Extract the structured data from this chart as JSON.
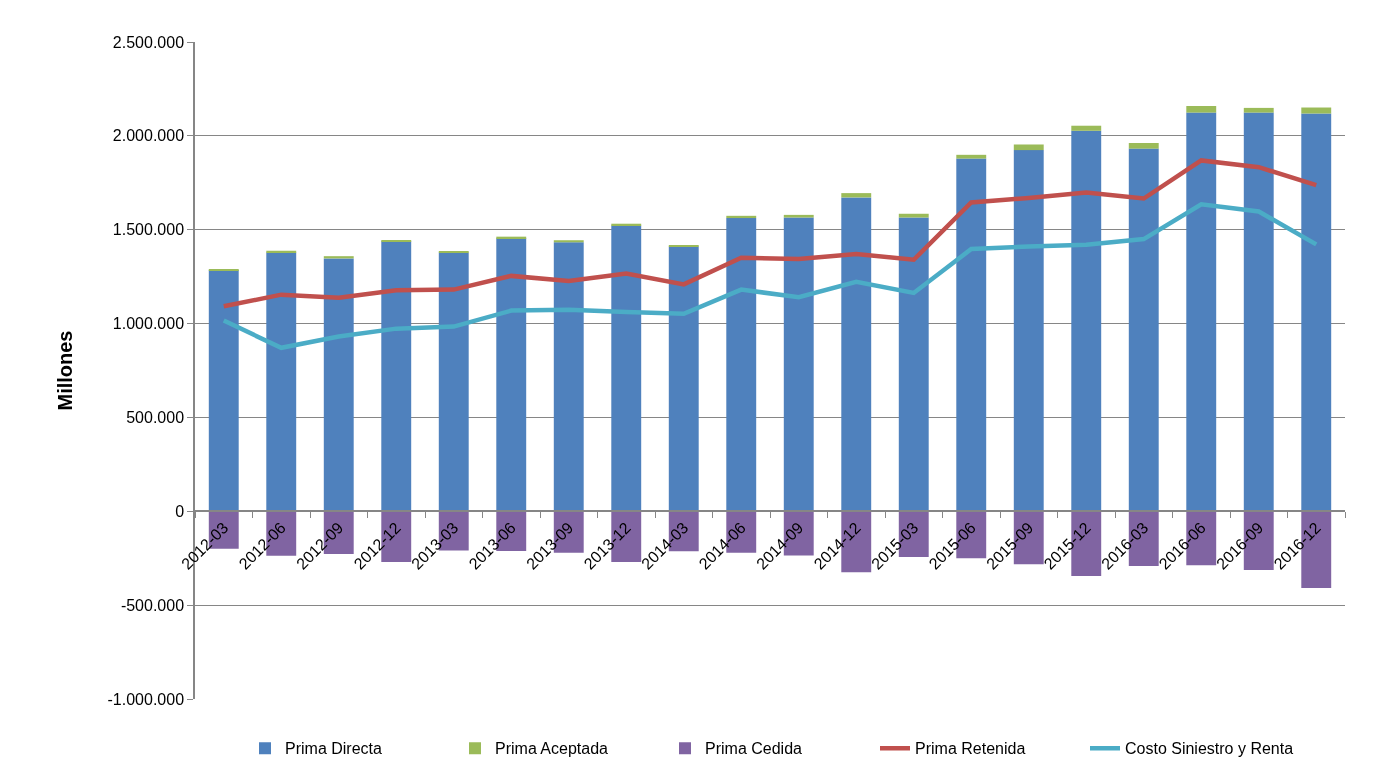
{
  "chart_data": {
    "type": "bar",
    "stacked": true,
    "ylabel": "Millones",
    "grid": "y",
    "legend": "bottom",
    "categories": [
      "2012-03",
      "2012-06",
      "2012-09",
      "2012-12",
      "2013-03",
      "2013-06",
      "2013-09",
      "2013-12",
      "2014-03",
      "2014-06",
      "2014-09",
      "2014-12",
      "2015-03",
      "2015-06",
      "2015-09",
      "2015-12",
      "2016-03",
      "2016-06",
      "2016-09",
      "2016-12"
    ],
    "ylim": [
      -1000000,
      2500000
    ],
    "yticks": [
      {
        "value": -1000000,
        "label": "-1.000.000"
      },
      {
        "value": -500000,
        "label": "-500.000"
      },
      0,
      {
        "value": 500000,
        "label": "500.000"
      },
      {
        "value": 1000000,
        "label": "1.000.000"
      },
      {
        "value": 1500000,
        "label": "1.500.000"
      },
      {
        "value": 2000000,
        "label": "2.000.000"
      },
      {
        "value": 2500000,
        "label": "2.500.000"
      }
    ],
    "series": [
      {
        "name": "Prima Directa",
        "color": "#4f81bd",
        "values": [
          1285000,
          1378000,
          1347000,
          1438000,
          1378000,
          1454000,
          1433000,
          1523000,
          1411000,
          1562000,
          1565000,
          1672000,
          1565000,
          1879000,
          1924000,
          2027000,
          1932000,
          2124000,
          2124000,
          2119000
        ]
      },
      {
        "name": "Prima Aceptada",
        "color": "#9bbb59",
        "values": [
          5000,
          10000,
          12000,
          7000,
          7000,
          9000,
          11000,
          9000,
          7000,
          12000,
          14000,
          23000,
          20000,
          20000,
          30000,
          27000,
          30000,
          35000,
          25000,
          32000
        ]
      },
      {
        "name": "Prima Cedida",
        "color": "#8064a2",
        "values": [
          -200000,
          -237000,
          -227000,
          -270000,
          -209000,
          -211000,
          -221000,
          -270000,
          -213000,
          -221000,
          -235000,
          -325000,
          -243000,
          -250000,
          -282000,
          -345000,
          -292000,
          -288000,
          -313000,
          -409000
        ]
      },
      {
        "name": "Prima Retenida",
        "type": "line",
        "color": "#c0504d",
        "values": [
          1092000,
          1154000,
          1137000,
          1177000,
          1181000,
          1254000,
          1227000,
          1266000,
          1209000,
          1351000,
          1344000,
          1371000,
          1340000,
          1645000,
          1669000,
          1698000,
          1666000,
          1869000,
          1833000,
          1738000
        ]
      },
      {
        "name": "Costo Siniestro y Renta",
        "type": "line",
        "color": "#4bacc6",
        "values": [
          1016000,
          871000,
          931000,
          973000,
          984000,
          1069000,
          1073000,
          1062000,
          1052000,
          1181000,
          1140000,
          1222000,
          1163000,
          1397000,
          1411000,
          1420000,
          1450000,
          1635000,
          1597000,
          1422000
        ]
      }
    ]
  }
}
